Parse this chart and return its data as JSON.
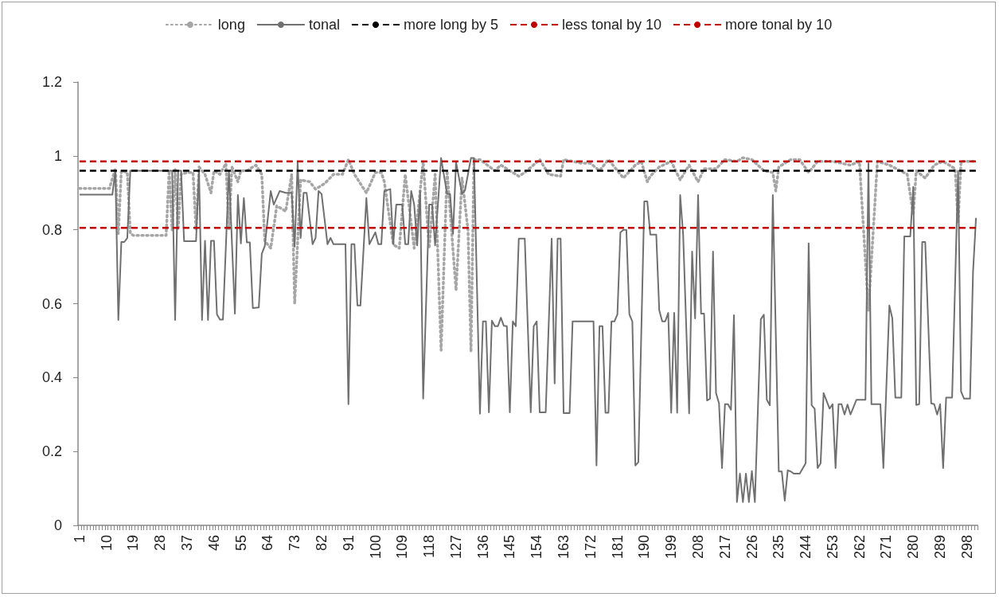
{
  "chart_data": {
    "type": "line",
    "legend": "top",
    "marker": "none",
    "ylim": [
      0,
      1.2
    ],
    "yticks": [
      0,
      0.2,
      0.4,
      0.6,
      0.8,
      1,
      1.2
    ],
    "xlim": [
      0.5,
      301.5
    ],
    "xticks": [
      1,
      10,
      19,
      28,
      37,
      46,
      55,
      64,
      73,
      82,
      91,
      100,
      109,
      118,
      127,
      136,
      145,
      154,
      163,
      172,
      181,
      190,
      199,
      208,
      217,
      226,
      235,
      244,
      253,
      262,
      271,
      280,
      289,
      298
    ],
    "series": [
      {
        "name": "long",
        "color": "#a6a6a6",
        "line_style": "dotted",
        "x": [
          1,
          11,
          13,
          14,
          15,
          17,
          18,
          19,
          30,
          31,
          32,
          33,
          34,
          35,
          37,
          39,
          40,
          41,
          43,
          45,
          46,
          48,
          50,
          51,
          52,
          54,
          55,
          57,
          60,
          62,
          63,
          65,
          67,
          70,
          72,
          73,
          75,
          78,
          80,
          83,
          86,
          89,
          91,
          93,
          97,
          100,
          102,
          103,
          106,
          108,
          110,
          113,
          116,
          118,
          120,
          122,
          124,
          127,
          129,
          131,
          132,
          133,
          135,
          140,
          142,
          148,
          150,
          155,
          158,
          162,
          163,
          169,
          172,
          175,
          178,
          183,
          187,
          189,
          191,
          192,
          195,
          199,
          202,
          205,
          208,
          210,
          214,
          217,
          221,
          223,
          226,
          230,
          233,
          234,
          235,
          239,
          242,
          245,
          248,
          253,
          259,
          262,
          265,
          268,
          272,
          278,
          280,
          281,
          284,
          287,
          290,
          294,
          295,
          296,
          301
        ],
        "values": [
          0.912,
          0.912,
          0.966,
          0.79,
          0.96,
          0.955,
          0.79,
          0.785,
          0.785,
          0.96,
          0.8,
          0.965,
          0.8,
          0.95,
          0.955,
          0.955,
          0.8,
          0.97,
          0.95,
          0.9,
          0.96,
          0.95,
          0.98,
          0.8,
          0.97,
          0.93,
          0.96,
          0.96,
          0.975,
          0.95,
          0.77,
          0.75,
          0.865,
          0.85,
          0.95,
          0.6,
          0.935,
          0.93,
          0.91,
          0.925,
          0.95,
          0.95,
          0.99,
          0.95,
          0.9,
          0.955,
          0.955,
          0.93,
          0.76,
          0.75,
          0.95,
          0.75,
          0.985,
          0.75,
          0.95,
          0.474,
          0.96,
          0.636,
          0.94,
          0.8,
          0.47,
          0.99,
          0.99,
          0.96,
          0.975,
          0.945,
          0.955,
          0.99,
          0.95,
          0.945,
          0.99,
          0.98,
          0.98,
          0.96,
          0.99,
          0.94,
          0.975,
          0.985,
          0.93,
          0.945,
          0.97,
          0.985,
          0.935,
          0.975,
          0.93,
          0.965,
          0.965,
          0.99,
          0.985,
          0.995,
          0.99,
          0.96,
          0.955,
          0.905,
          0.97,
          0.99,
          0.99,
          0.955,
          0.985,
          0.985,
          0.975,
          0.985,
          0.58,
          0.985,
          0.975,
          0.95,
          0.84,
          0.96,
          0.94,
          0.975,
          0.985,
          0.965,
          0.82,
          0.985,
          0.985
        ]
      },
      {
        "name": "tonal",
        "color": "#707070",
        "line_style": "solid",
        "x": [
          1,
          12,
          13,
          14,
          15,
          16,
          17,
          18,
          32,
          33,
          34,
          35,
          36,
          40,
          41,
          42,
          43,
          44,
          45,
          46,
          47,
          48,
          49,
          51,
          53,
          54,
          55,
          56,
          57,
          58,
          59,
          61,
          62,
          63,
          65,
          66,
          68,
          70,
          72,
          73,
          74,
          75,
          76,
          77,
          79,
          80,
          81,
          82,
          84,
          85,
          86,
          90,
          91,
          92,
          93,
          94,
          95,
          97,
          98,
          100,
          101,
          102,
          103,
          105,
          106,
          107,
          109,
          110,
          111,
          112,
          113,
          114,
          115,
          116,
          118,
          119,
          120,
          122,
          124,
          125,
          126,
          127,
          129,
          130,
          132,
          133,
          135,
          136,
          137,
          138,
          139,
          140,
          141,
          142,
          143,
          144,
          145,
          146,
          147,
          148,
          150,
          152,
          153,
          154,
          155,
          157,
          159,
          160,
          161,
          162,
          163,
          165,
          166,
          173,
          174,
          175,
          176,
          177,
          178,
          179,
          180,
          181,
          182,
          183,
          184,
          185,
          186,
          187,
          188,
          190,
          191,
          192,
          194,
          195,
          196,
          197,
          198,
          199,
          200,
          201,
          202,
          203,
          205,
          206,
          207,
          208,
          209,
          210,
          211,
          212,
          213,
          214,
          215,
          216,
          217,
          218,
          219,
          220,
          221,
          222,
          223,
          224,
          225,
          226,
          227,
          229,
          230,
          231,
          232,
          233,
          235,
          236,
          237,
          238,
          239,
          240,
          242,
          244,
          245,
          246,
          247,
          248,
          249,
          250,
          252,
          253,
          254,
          255,
          256,
          257,
          258,
          259,
          261,
          264,
          265,
          266,
          269,
          270,
          272,
          273,
          274,
          276,
          277,
          279,
          280,
          281,
          282,
          283,
          284,
          286,
          287,
          288,
          289,
          290,
          291,
          293,
          295,
          296,
          297,
          299,
          300,
          301
        ],
        "values": [
          0.895,
          0.895,
          0.96,
          0.556,
          0.767,
          0.767,
          0.778,
          0.96,
          0.96,
          0.556,
          0.96,
          0.96,
          0.769,
          0.769,
          0.96,
          0.556,
          0.77,
          0.556,
          0.77,
          0.77,
          0.571,
          0.557,
          0.557,
          0.96,
          0.573,
          0.894,
          0.763,
          0.886,
          0.766,
          0.766,
          0.588,
          0.59,
          0.735,
          0.756,
          0.905,
          0.868,
          0.905,
          0.9,
          0.9,
          0.754,
          0.983,
          0.778,
          0.9,
          0.9,
          0.761,
          0.778,
          0.905,
          0.897,
          0.761,
          0.778,
          0.761,
          0.761,
          0.328,
          0.761,
          0.761,
          0.595,
          0.595,
          0.886,
          0.761,
          0.793,
          0.761,
          0.761,
          0.905,
          0.91,
          0.761,
          0.868,
          0.868,
          0.761,
          0.761,
          0.905,
          0.868,
          0.758,
          0.905,
          0.343,
          0.868,
          0.868,
          0.758,
          0.994,
          0.897,
          0.897,
          0.789,
          0.983,
          0.897,
          0.907,
          0.994,
          0.994,
          0.302,
          0.552,
          0.552,
          0.306,
          0.554,
          0.539,
          0.539,
          0.562,
          0.54,
          0.539,
          0.306,
          0.552,
          0.539,
          0.776,
          0.776,
          0.306,
          0.539,
          0.552,
          0.306,
          0.306,
          0.776,
          0.384,
          0.776,
          0.776,
          0.304,
          0.304,
          0.552,
          0.552,
          0.162,
          0.539,
          0.539,
          0.305,
          0.305,
          0.552,
          0.552,
          0.571,
          0.793,
          0.8,
          0.8,
          0.571,
          0.552,
          0.162,
          0.171,
          0.877,
          0.877,
          0.787,
          0.787,
          0.582,
          0.552,
          0.552,
          0.575,
          0.305,
          0.575,
          0.305,
          0.894,
          0.787,
          0.303,
          0.741,
          0.56,
          0.894,
          0.573,
          0.573,
          0.338,
          0.343,
          0.741,
          0.358,
          0.33,
          0.155,
          0.328,
          0.328,
          0.313,
          0.569,
          0.063,
          0.14,
          0.063,
          0.14,
          0.063,
          0.147,
          0.063,
          0.558,
          0.57,
          0.34,
          0.325,
          0.894,
          0.146,
          0.146,
          0.067,
          0.149,
          0.146,
          0.14,
          0.14,
          0.168,
          0.763,
          0.325,
          0.316,
          0.155,
          0.168,
          0.358,
          0.316,
          0.328,
          0.155,
          0.328,
          0.328,
          0.3,
          0.327,
          0.3,
          0.34,
          0.34,
          0.98,
          0.328,
          0.328,
          0.155,
          0.595,
          0.56,
          0.346,
          0.346,
          0.782,
          0.782,
          0.916,
          0.326,
          0.328,
          0.767,
          0.767,
          0.33,
          0.328,
          0.3,
          0.328,
          0.155,
          0.346,
          0.346,
          0.96,
          0.362,
          0.343,
          0.343,
          0.685,
          0.832
        ]
      },
      {
        "name": "more long by 5",
        "color": "#000000",
        "line_style": "dashed",
        "x": [
          1,
          301
        ],
        "values": [
          0.96,
          0.96
        ]
      },
      {
        "name": "less tonal by 10",
        "color": "#c00000",
        "line_style": "dashed",
        "x": [
          1,
          301
        ],
        "values": [
          0.805,
          0.805
        ]
      },
      {
        "name": "more tonal by 10",
        "color": "#c00000",
        "line_style": "dashed",
        "x": [
          1,
          301
        ],
        "values": [
          0.985,
          0.985
        ]
      }
    ]
  }
}
